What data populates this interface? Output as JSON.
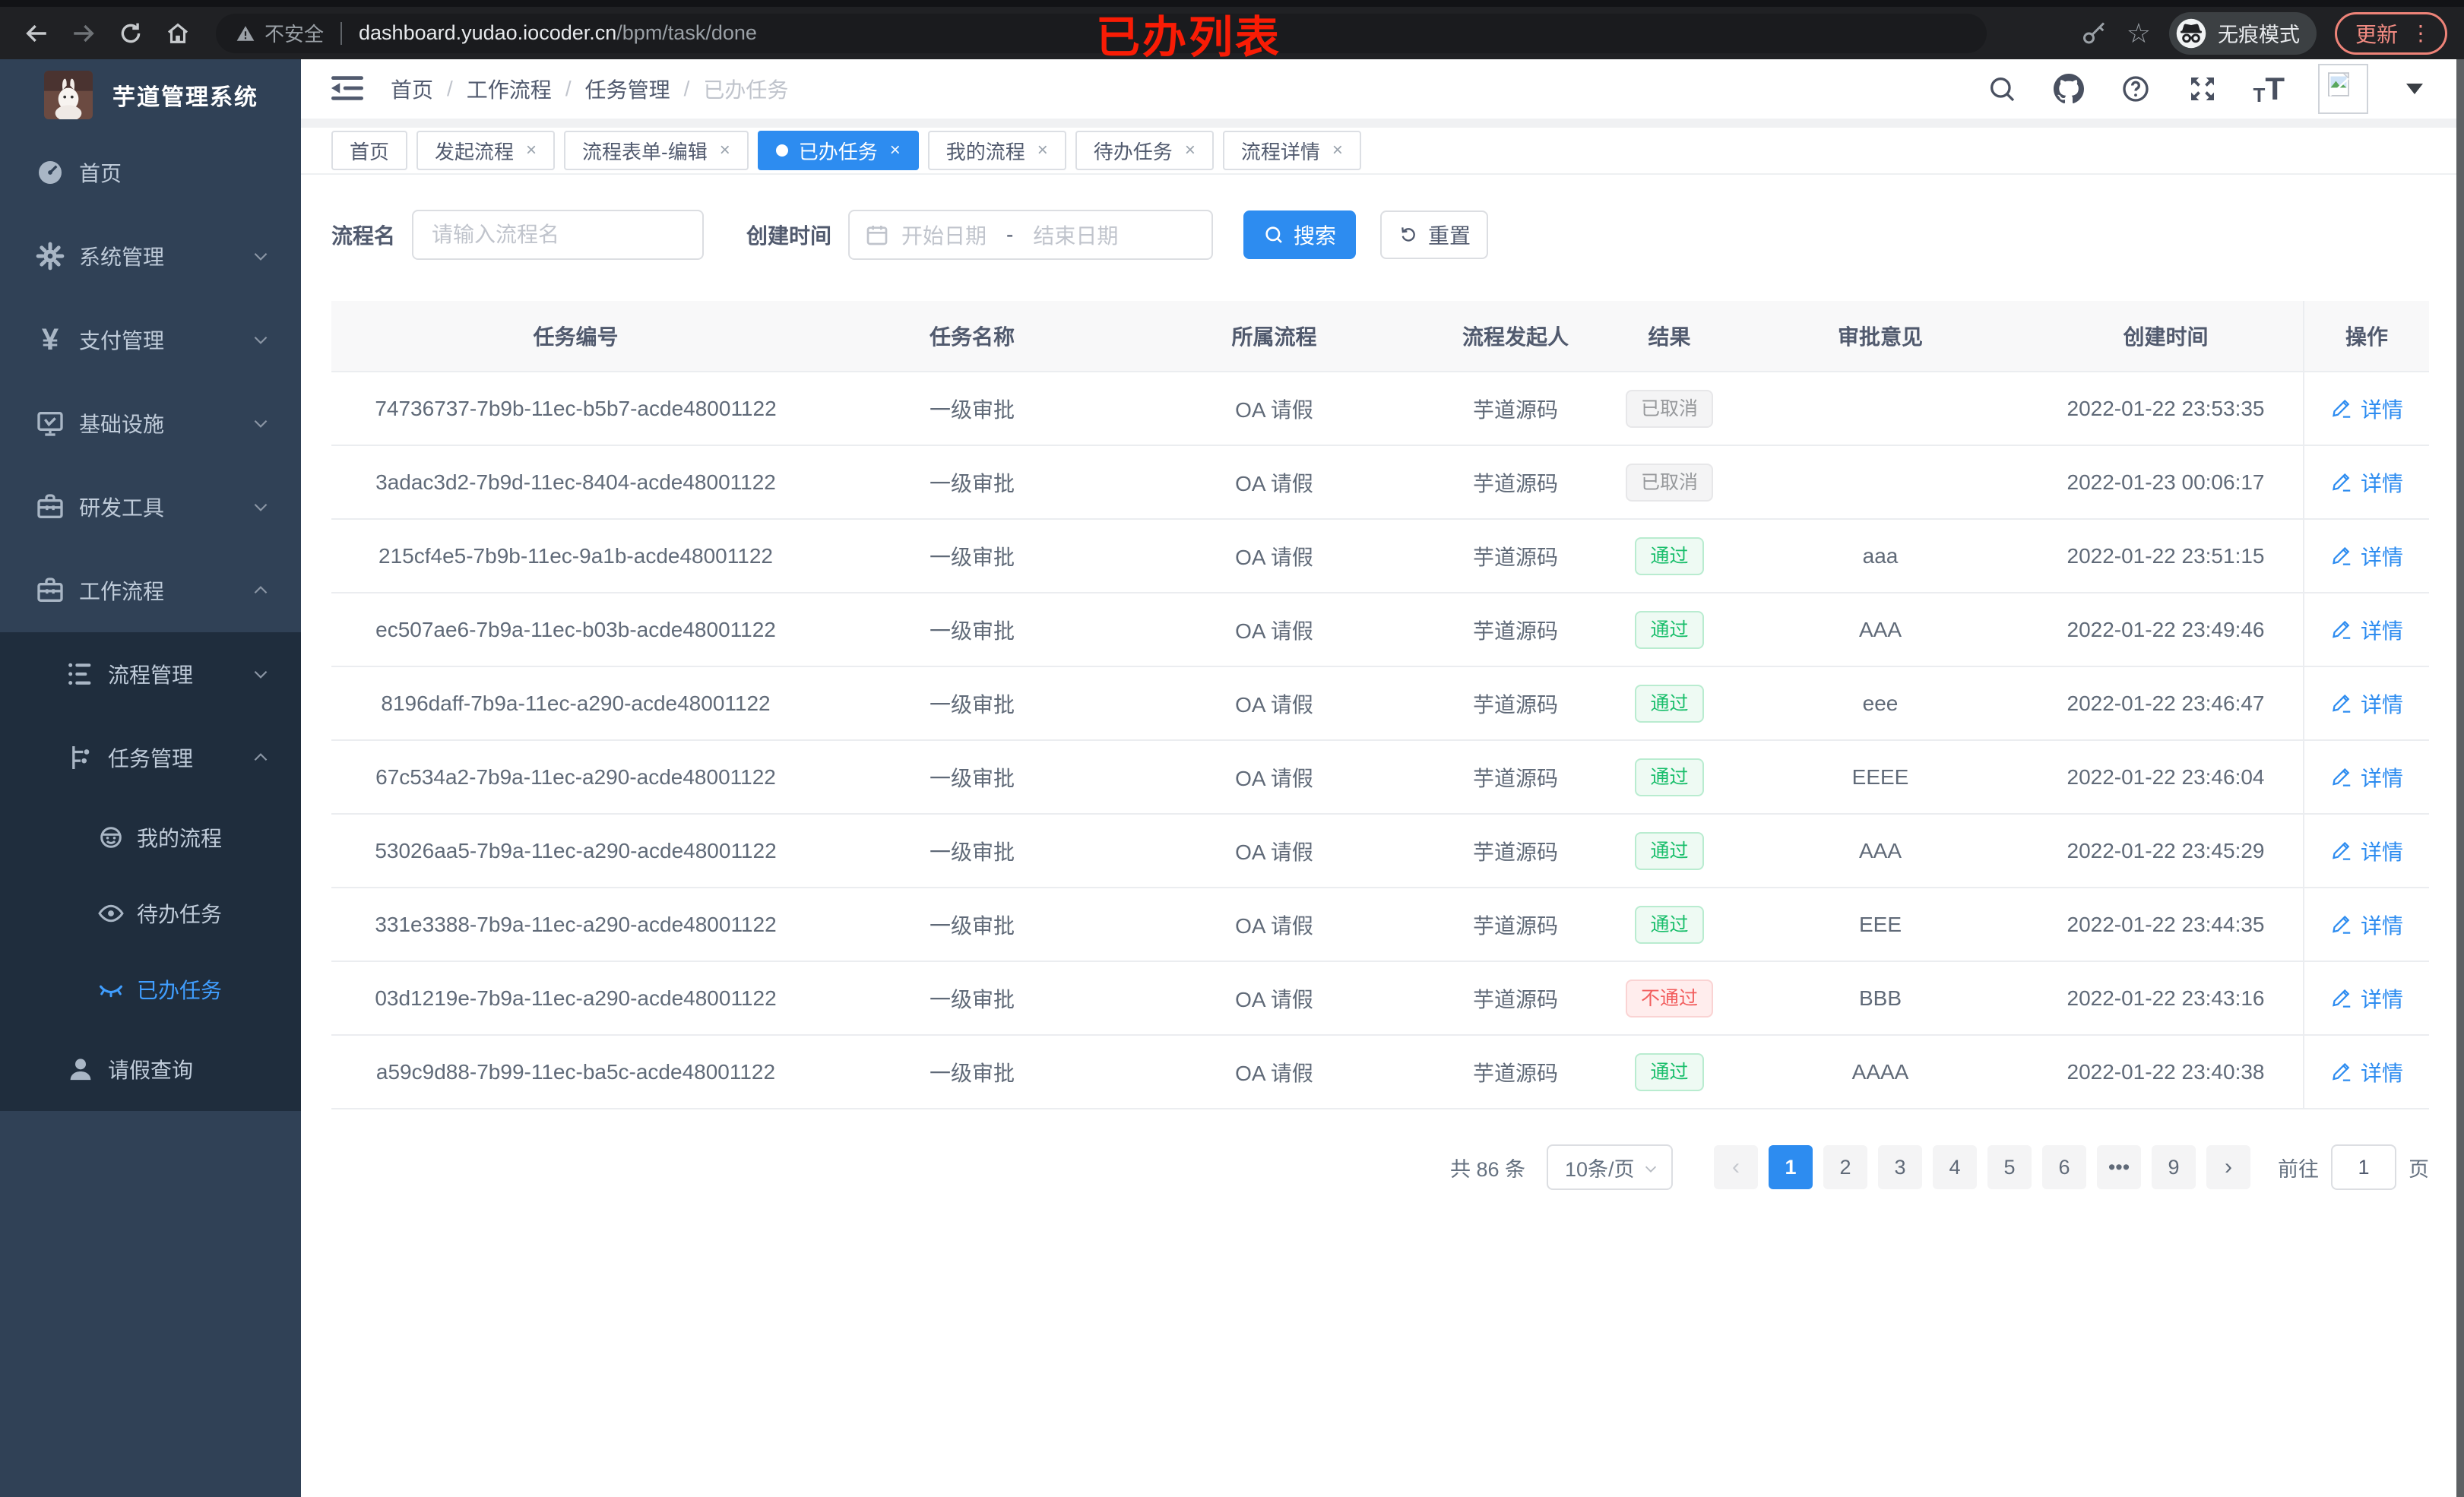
{
  "annotation": {
    "text": "已办列表"
  },
  "browser": {
    "security": "不安全",
    "url_host": "dashboard.yudao.iocoder.cn",
    "url_path": "/bpm/task/done",
    "incognito": "无痕模式",
    "update": "更新"
  },
  "sidebar": {
    "title": "芋道管理系统",
    "menu": [
      {
        "key": "home",
        "label": "首页",
        "icon": "dashboard-icon",
        "level": 1,
        "sub": false,
        "chevron": null,
        "active": false
      },
      {
        "key": "system",
        "label": "系统管理",
        "icon": "gear-icon",
        "level": 1,
        "sub": false,
        "chevron": "down",
        "active": false
      },
      {
        "key": "payment",
        "label": "支付管理",
        "icon": "yen-icon",
        "level": 1,
        "sub": false,
        "chevron": "down",
        "active": false
      },
      {
        "key": "infra",
        "label": "基础设施",
        "icon": "monitor-icon",
        "level": 1,
        "sub": false,
        "chevron": "down",
        "active": false
      },
      {
        "key": "devtools",
        "label": "研发工具",
        "icon": "toolbox-icon",
        "level": 1,
        "sub": false,
        "chevron": "down",
        "active": false
      },
      {
        "key": "workflow",
        "label": "工作流程",
        "icon": "briefcase-icon",
        "level": 1,
        "sub": false,
        "chevron": "up",
        "active": false
      },
      {
        "key": "process-mgmt",
        "label": "流程管理",
        "icon": "list-tree-icon",
        "level": 2,
        "sub": true,
        "chevron": "down",
        "active": false
      },
      {
        "key": "task-mgmt",
        "label": "任务管理",
        "icon": "flow-icon",
        "level": 2,
        "sub": true,
        "chevron": "up",
        "active": false
      },
      {
        "key": "my-process",
        "label": "我的流程",
        "icon": "robot-icon",
        "level": 3,
        "sub": true,
        "chevron": null,
        "active": false
      },
      {
        "key": "todo-tasks",
        "label": "待办任务",
        "icon": "eye-open-icon",
        "level": 3,
        "sub": true,
        "chevron": null,
        "active": false
      },
      {
        "key": "done-tasks",
        "label": "已办任务",
        "icon": "eye-closed-icon",
        "level": 3,
        "sub": true,
        "chevron": null,
        "active": true
      },
      {
        "key": "leave-query",
        "label": "请假查询",
        "icon": "user-icon",
        "level": 2,
        "sub": true,
        "chevron": null,
        "active": false
      }
    ]
  },
  "breadcrumb": {
    "items": [
      "首页",
      "工作流程",
      "任务管理",
      "已办任务"
    ]
  },
  "tabs": [
    {
      "label": "首页",
      "closable": false,
      "active": false
    },
    {
      "label": "发起流程",
      "closable": true,
      "active": false
    },
    {
      "label": "流程表单-编辑",
      "closable": true,
      "active": false
    },
    {
      "label": "已办任务",
      "closable": true,
      "active": true
    },
    {
      "label": "我的流程",
      "closable": true,
      "active": false
    },
    {
      "label": "待办任务",
      "closable": true,
      "active": false
    },
    {
      "label": "流程详情",
      "closable": true,
      "active": false
    }
  ],
  "filters": {
    "name_label": "流程名",
    "name_placeholder": "请输入流程名",
    "time_label": "创建时间",
    "start_placeholder": "开始日期",
    "range_separator": "-",
    "end_placeholder": "结束日期",
    "search": "搜索",
    "reset": "重置"
  },
  "table": {
    "columns": [
      "任务编号",
      "任务名称",
      "所属流程",
      "流程发起人",
      "结果",
      "审批意见",
      "创建时间",
      "操作"
    ],
    "detail_label": "详情",
    "rows": [
      {
        "id": "74736737-7b9b-11ec-b5b7-acde48001122",
        "name": "一级审批",
        "process": "OA 请假",
        "starter": "芋道源码",
        "result": "已取消",
        "result_type": "info",
        "opinion": "",
        "created": "2022-01-22 23:53:35"
      },
      {
        "id": "3adac3d2-7b9d-11ec-8404-acde48001122",
        "name": "一级审批",
        "process": "OA 请假",
        "starter": "芋道源码",
        "result": "已取消",
        "result_type": "info",
        "opinion": "",
        "created": "2022-01-23 00:06:17"
      },
      {
        "id": "215cf4e5-7b9b-11ec-9a1b-acde48001122",
        "name": "一级审批",
        "process": "OA 请假",
        "starter": "芋道源码",
        "result": "通过",
        "result_type": "pass",
        "opinion": "aaa",
        "created": "2022-01-22 23:51:15"
      },
      {
        "id": "ec507ae6-7b9a-11ec-b03b-acde48001122",
        "name": "一级审批",
        "process": "OA 请假",
        "starter": "芋道源码",
        "result": "通过",
        "result_type": "pass",
        "opinion": "AAA",
        "created": "2022-01-22 23:49:46"
      },
      {
        "id": "8196daff-7b9a-11ec-a290-acde48001122",
        "name": "一级审批",
        "process": "OA 请假",
        "starter": "芋道源码",
        "result": "通过",
        "result_type": "pass",
        "opinion": "eee",
        "created": "2022-01-22 23:46:47"
      },
      {
        "id": "67c534a2-7b9a-11ec-a290-acde48001122",
        "name": "一级审批",
        "process": "OA 请假",
        "starter": "芋道源码",
        "result": "通过",
        "result_type": "pass",
        "opinion": "EEEE",
        "created": "2022-01-22 23:46:04"
      },
      {
        "id": "53026aa5-7b9a-11ec-a290-acde48001122",
        "name": "一级审批",
        "process": "OA 请假",
        "starter": "芋道源码",
        "result": "通过",
        "result_type": "pass",
        "opinion": "AAA",
        "created": "2022-01-22 23:45:29"
      },
      {
        "id": "331e3388-7b9a-11ec-a290-acde48001122",
        "name": "一级审批",
        "process": "OA 请假",
        "starter": "芋道源码",
        "result": "通过",
        "result_type": "pass",
        "opinion": "EEE",
        "created": "2022-01-22 23:44:35"
      },
      {
        "id": "03d1219e-7b9a-11ec-a290-acde48001122",
        "name": "一级审批",
        "process": "OA 请假",
        "starter": "芋道源码",
        "result": "不通过",
        "result_type": "fail",
        "opinion": "BBB",
        "created": "2022-01-22 23:43:16"
      },
      {
        "id": "a59c9d88-7b99-11ec-ba5c-acde48001122",
        "name": "一级审批",
        "process": "OA 请假",
        "starter": "芋道源码",
        "result": "通过",
        "result_type": "pass",
        "opinion": "AAAA",
        "created": "2022-01-22 23:40:38"
      }
    ]
  },
  "pagination": {
    "total": "共 86 条",
    "page_size": "10条/页",
    "prev": "‹",
    "next": "›",
    "pages": [
      "1",
      "2",
      "3",
      "4",
      "5",
      "6",
      "•••",
      "9"
    ],
    "active_page": "1",
    "goto_label": "前往",
    "goto_value": "1",
    "page_label": "页"
  },
  "colors": {
    "primary": "#2d8cf0",
    "sidebar_bg": "#304156",
    "submenu_bg": "#1f2d3d",
    "sidebar_active": "#409eff",
    "success_text": "#19be6b",
    "fail_text": "#f25e5e",
    "info_text": "#97999c",
    "annotation_red": "#f91c05"
  }
}
